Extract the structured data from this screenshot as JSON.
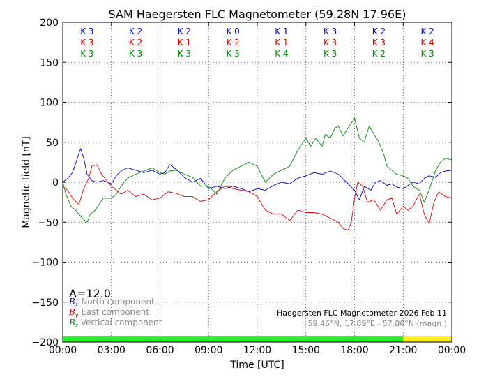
{
  "chart_data": {
    "type": "line",
    "title": "SAM Haegersten FLC Magnetometer (59.28N 17.96E)",
    "xlabel": "Time [UTC]",
    "ylabel": "Magnetic field [nT]",
    "xlim": [
      0,
      24
    ],
    "ylim": [
      -200,
      200
    ],
    "x_ticks": [
      0,
      3,
      6,
      9,
      12,
      15,
      18,
      21,
      24
    ],
    "x_tick_labels": [
      "00:00",
      "03:00",
      "06:00",
      "09:00",
      "12:00",
      "15:00",
      "18:00",
      "21:00",
      "00:00"
    ],
    "y_ticks": [
      -200,
      -150,
      -100,
      -50,
      0,
      50,
      100,
      150,
      200
    ],
    "y_tick_labels": [
      "−200",
      "−150",
      "−100",
      "−50",
      "0",
      "50",
      "100",
      "150",
      "200"
    ],
    "grid": true,
    "k_index_rows": [
      {
        "color": "#0000cc",
        "values": [
          "K 3",
          "K 2",
          "K 2",
          "K 0",
          "K 1",
          "K 3",
          "K 2",
          "K 2"
        ]
      },
      {
        "color": "#dd0000",
        "values": [
          "K 3",
          "K 2",
          "K 1",
          "K 2",
          "K 1",
          "K 3",
          "K 3",
          "K 4"
        ]
      },
      {
        "color": "#008800",
        "values": [
          "K 3",
          "K 3",
          "K 3",
          "K 3",
          "K 4",
          "K 3",
          "K 2",
          "K 3"
        ]
      }
    ],
    "a_index": "A=12.0",
    "legend": [
      {
        "symbol": "B",
        "sub": "x",
        "label": "North component",
        "color": "#0000cc"
      },
      {
        "symbol": "B",
        "sub": "y",
        "label": "East component",
        "color": "#dd0000"
      },
      {
        "symbol": "B",
        "sub": "z",
        "label": "Vertical component",
        "color": "#008800"
      }
    ],
    "station_note": "Haegersten FLC Magnetometer 2026 Feb 11",
    "coord_note": "59.46°N, 17.89°E - 57.86°N (magn.)",
    "data_bar": [
      {
        "from": 0,
        "to": 21,
        "color": "#33ee33"
      },
      {
        "from": 21,
        "to": 24,
        "color": "#ffee22"
      }
    ],
    "series": [
      {
        "name": "Bx North component",
        "color": "#0000cc",
        "x": [
          0,
          0.3,
          0.6,
          0.9,
          1.1,
          1.3,
          1.5,
          1.8,
          2.1,
          2.5,
          3,
          3.3,
          3.6,
          4,
          4.5,
          5,
          5.5,
          6,
          6.3,
          6.6,
          7,
          7.5,
          8,
          8.5,
          9,
          9.5,
          10,
          10.5,
          11,
          11.5,
          12,
          12.5,
          13,
          13.5,
          14,
          14.5,
          15,
          15.5,
          16,
          16.5,
          17,
          17.5,
          18,
          18.3,
          18.6,
          19,
          19.3,
          19.6,
          20,
          20.3,
          20.6,
          21,
          21.3,
          21.6,
          22,
          22.3,
          22.6,
          23,
          23.3,
          23.6,
          24
        ],
        "values": [
          0,
          5,
          12,
          30,
          42,
          30,
          10,
          2,
          0,
          2,
          -2,
          8,
          14,
          18,
          15,
          12,
          15,
          10,
          12,
          22,
          16,
          6,
          0,
          5,
          -8,
          -5,
          -8,
          -5,
          -8,
          -12,
          -8,
          -10,
          -4,
          0,
          -2,
          5,
          8,
          12,
          10,
          14,
          10,
          0,
          -10,
          -22,
          -5,
          -10,
          0,
          2,
          -4,
          -2,
          -6,
          -8,
          -4,
          0,
          -2,
          5,
          8,
          6,
          12,
          14,
          15
        ]
      },
      {
        "name": "By East component",
        "color": "#dd0000",
        "x": [
          0,
          0.3,
          0.6,
          1,
          1.3,
          1.6,
          1.8,
          2.1,
          2.4,
          2.7,
          3,
          3.3,
          3.6,
          4,
          4.5,
          5,
          5.5,
          6,
          6.5,
          7,
          7.5,
          8,
          8.5,
          9,
          9.5,
          10,
          10.5,
          11,
          11.5,
          12,
          12.5,
          13,
          13.5,
          14,
          14.5,
          15,
          15.5,
          16,
          16.5,
          17,
          17.3,
          17.6,
          17.8,
          18,
          18.2,
          18.5,
          18.8,
          19.2,
          19.6,
          20,
          20.3,
          20.6,
          21,
          21.3,
          21.6,
          22,
          22.3,
          22.6,
          22.9,
          23.2,
          23.6,
          24
        ],
        "values": [
          -5,
          -10,
          -20,
          -28,
          -8,
          5,
          20,
          22,
          10,
          2,
          -5,
          -10,
          -15,
          -10,
          -18,
          -15,
          -22,
          -20,
          -12,
          -14,
          -18,
          -18,
          -24,
          -22,
          -12,
          -5,
          -8,
          -10,
          -12,
          -18,
          -35,
          -40,
          -40,
          -48,
          -35,
          -38,
          -38,
          -40,
          -45,
          -50,
          -58,
          -60,
          -50,
          -20,
          0,
          -5,
          -25,
          -22,
          -35,
          -22,
          -20,
          -40,
          -30,
          -35,
          -30,
          -15,
          -40,
          -52,
          -25,
          -12,
          -18,
          -20
        ]
      },
      {
        "name": "Bz Vertical component",
        "color": "#008800",
        "x": [
          0,
          0.2,
          0.5,
          0.8,
          1,
          1.2,
          1.5,
          1.7,
          2,
          2.5,
          3,
          3.3,
          3.6,
          4,
          4.5,
          5,
          5.5,
          6,
          6.3,
          6.6,
          7,
          7.5,
          8,
          8.5,
          9,
          9.5,
          10,
          10.5,
          11,
          11.5,
          12,
          12.5,
          13,
          13.5,
          14,
          14.5,
          15,
          15.3,
          15.6,
          16,
          16.2,
          16.5,
          16.8,
          17,
          17.3,
          17.6,
          18,
          18.3,
          18.6,
          18.9,
          19.2,
          19.5,
          19.8,
          20,
          20.3,
          20.6,
          21,
          21.3,
          21.6,
          22,
          22.3,
          22.6,
          23,
          23.3,
          23.6,
          24
        ],
        "values": [
          0,
          -15,
          -30,
          -35,
          -40,
          -45,
          -50,
          -40,
          -35,
          -20,
          -20,
          -15,
          -5,
          5,
          10,
          14,
          18,
          12,
          10,
          14,
          15,
          10,
          6,
          -5,
          -5,
          -15,
          5,
          15,
          20,
          25,
          20,
          0,
          10,
          15,
          20,
          40,
          55,
          45,
          55,
          45,
          60,
          55,
          68,
          70,
          58,
          68,
          80,
          55,
          50,
          70,
          60,
          50,
          35,
          20,
          15,
          10,
          8,
          5,
          -5,
          -10,
          -25,
          -10,
          15,
          25,
          30,
          28
        ]
      }
    ]
  }
}
